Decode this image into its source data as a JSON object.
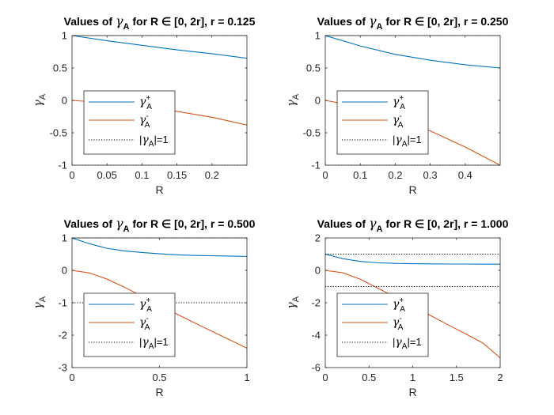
{
  "colors": {
    "gamma_plus": "#0072BD",
    "gamma_minus": "#D95319",
    "unit_line": "#000000",
    "axis": "#262626"
  },
  "chart_data": [
    {
      "type": "line",
      "title": {
        "prefix": "Values of ",
        "greek": "γ",
        "sub": "A",
        "suffix": " for R ∈ [0, 2r], r = 0.125"
      },
      "xlabel": "R",
      "ylabel": {
        "greek": "γ",
        "sub": "A"
      },
      "xlim": [
        0,
        0.25
      ],
      "ylim": [
        -1,
        1
      ],
      "xticks": [
        0,
        0.05,
        0.1,
        0.15,
        0.2
      ],
      "xtick_labels": [
        "0",
        "0.05",
        "0.1",
        "0.15",
        "0.2"
      ],
      "yticks": [
        -1,
        -0.5,
        0,
        0.5,
        1
      ],
      "ytick_labels": [
        "-1",
        "-0.5",
        "0",
        "0.5",
        "1"
      ],
      "legend": {
        "location": "lower-left",
        "entries": [
          {
            "greek": "γ",
            "sub": "A",
            "sup": "+"
          },
          {
            "greek": "γ",
            "sub": "A",
            "sup": "-"
          },
          {
            "text_before": "|",
            "greek": "γ",
            "sub": "A",
            "text_after": "|=1"
          }
        ]
      },
      "series": [
        {
          "key": "plus",
          "x": [
            0,
            0.05,
            0.1,
            0.15,
            0.2,
            0.25
          ],
          "y": [
            1.0,
            0.92,
            0.85,
            0.78,
            0.72,
            0.65
          ]
        },
        {
          "key": "minus",
          "x": [
            0,
            0.05,
            0.1,
            0.15,
            0.2,
            0.25
          ],
          "y": [
            0.0,
            -0.04,
            -0.1,
            -0.17,
            -0.26,
            -0.38
          ]
        },
        {
          "key": "unit_pos",
          "x": [
            0,
            0.25
          ],
          "y": [
            1,
            1
          ]
        },
        {
          "key": "unit_neg",
          "x": [
            0,
            0.25
          ],
          "y": [
            -1,
            -1
          ]
        }
      ]
    },
    {
      "type": "line",
      "title": {
        "prefix": "Values of ",
        "greek": "γ",
        "sub": "A",
        "suffix": " for R ∈ [0, 2r], r = 0.250"
      },
      "xlabel": "R",
      "ylabel": {
        "greek": "γ",
        "sub": "A"
      },
      "xlim": [
        0,
        0.5
      ],
      "ylim": [
        -1,
        1
      ],
      "xticks": [
        0,
        0.1,
        0.2,
        0.3,
        0.4
      ],
      "xtick_labels": [
        "0",
        "0.1",
        "0.2",
        "0.3",
        "0.4"
      ],
      "yticks": [
        -1,
        -0.5,
        0,
        0.5,
        1
      ],
      "ytick_labels": [
        "-1",
        "-0.5",
        "0",
        "0.5",
        "1"
      ],
      "legend": {
        "location": "lower-left",
        "entries": [
          {
            "greek": "γ",
            "sub": "A",
            "sup": "+"
          },
          {
            "greek": "γ",
            "sub": "A",
            "sup": "-"
          },
          {
            "text_before": "|",
            "greek": "γ",
            "sub": "A",
            "text_after": "|=1"
          }
        ]
      },
      "series": [
        {
          "key": "plus",
          "x": [
            0,
            0.1,
            0.2,
            0.3,
            0.4,
            0.5
          ],
          "y": [
            1.0,
            0.84,
            0.71,
            0.62,
            0.55,
            0.5
          ]
        },
        {
          "key": "minus",
          "x": [
            0,
            0.1,
            0.2,
            0.3,
            0.4,
            0.5
          ],
          "y": [
            0.0,
            -0.1,
            -0.26,
            -0.47,
            -0.72,
            -1.0
          ]
        },
        {
          "key": "unit_pos",
          "x": [
            0,
            0.5
          ],
          "y": [
            1,
            1
          ]
        },
        {
          "key": "unit_neg",
          "x": [
            0,
            0.5
          ],
          "y": [
            -1,
            -1
          ]
        }
      ]
    },
    {
      "type": "line",
      "title": {
        "prefix": "Values of ",
        "greek": "γ",
        "sub": "A",
        "suffix": " for R ∈ [0, 2r], r = 0.500"
      },
      "xlabel": "R",
      "ylabel": {
        "greek": "γ",
        "sub": "A"
      },
      "xlim": [
        0,
        1
      ],
      "ylim": [
        -3,
        1
      ],
      "xticks": [
        0,
        0.5,
        1
      ],
      "xtick_labels": [
        "0",
        "0.5",
        "1"
      ],
      "yticks": [
        -3,
        -2,
        -1,
        0,
        1
      ],
      "ytick_labels": [
        "-3",
        "-2",
        "-1",
        "0",
        "1"
      ],
      "legend": {
        "location": "lower-left",
        "entries": [
          {
            "greek": "γ",
            "sub": "A",
            "sup": "+"
          },
          {
            "greek": "γ",
            "sub": "A",
            "sup": "-"
          },
          {
            "text_before": "|",
            "greek": "γ",
            "sub": "A",
            "text_after": "|=1"
          }
        ]
      },
      "series": [
        {
          "key": "plus",
          "x": [
            0,
            0.1,
            0.2,
            0.3,
            0.4,
            0.5,
            0.6,
            0.7,
            0.8,
            0.9,
            1.0
          ],
          "y": [
            1.0,
            0.82,
            0.68,
            0.6,
            0.55,
            0.51,
            0.48,
            0.46,
            0.45,
            0.44,
            0.43
          ]
        },
        {
          "key": "minus",
          "x": [
            0,
            0.1,
            0.2,
            0.3,
            0.4,
            0.5,
            0.6,
            0.7,
            0.8,
            0.9,
            1.0
          ],
          "y": [
            0.0,
            -0.08,
            -0.27,
            -0.52,
            -0.8,
            -1.08,
            -1.35,
            -1.62,
            -1.88,
            -2.14,
            -2.4
          ]
        },
        {
          "key": "unit_pos",
          "x": [
            0,
            1
          ],
          "y": [
            1,
            1
          ]
        },
        {
          "key": "unit_neg",
          "x": [
            0,
            1
          ],
          "y": [
            -1,
            -1
          ]
        }
      ]
    },
    {
      "type": "line",
      "title": {
        "prefix": "Values of ",
        "greek": "γ",
        "sub": "A",
        "suffix": " for R ∈ [0, 2r], r = 1.000"
      },
      "xlabel": "R",
      "ylabel": {
        "greek": "γ",
        "sub": "A"
      },
      "xlim": [
        0,
        2
      ],
      "ylim": [
        -6,
        2
      ],
      "xticks": [
        0,
        0.5,
        1,
        1.5,
        2
      ],
      "xtick_labels": [
        "0",
        "0.5",
        "1",
        "1.5",
        "2"
      ],
      "yticks": [
        -6,
        -4,
        -2,
        0,
        2
      ],
      "ytick_labels": [
        "-6",
        "-4",
        "-2",
        "0",
        "2"
      ],
      "legend": {
        "location": "lower-left",
        "entries": [
          {
            "greek": "γ",
            "sub": "A",
            "sup": "+"
          },
          {
            "greek": "γ",
            "sub": "A",
            "sup": "-"
          },
          {
            "text_before": "|",
            "greek": "γ",
            "sub": "A",
            "text_after": "|=1"
          }
        ]
      },
      "series": [
        {
          "key": "plus",
          "x": [
            0,
            0.2,
            0.4,
            0.6,
            0.8,
            1.0,
            1.2,
            1.4,
            1.6,
            1.8,
            2.0
          ],
          "y": [
            1.0,
            0.72,
            0.55,
            0.47,
            0.43,
            0.41,
            0.4,
            0.39,
            0.39,
            0.38,
            0.38
          ]
        },
        {
          "key": "minus",
          "x": [
            0,
            0.2,
            0.4,
            0.6,
            0.8,
            1.0,
            1.2,
            1.4,
            1.6,
            1.8,
            2.0
          ],
          "y": [
            0.0,
            -0.15,
            -0.55,
            -1.1,
            -1.65,
            -2.2,
            -2.78,
            -3.35,
            -3.9,
            -4.48,
            -5.4
          ]
        },
        {
          "key": "unit_pos",
          "x": [
            0,
            2
          ],
          "y": [
            1,
            1
          ]
        },
        {
          "key": "unit_neg",
          "x": [
            0,
            2
          ],
          "y": [
            -1,
            -1
          ]
        }
      ]
    }
  ]
}
